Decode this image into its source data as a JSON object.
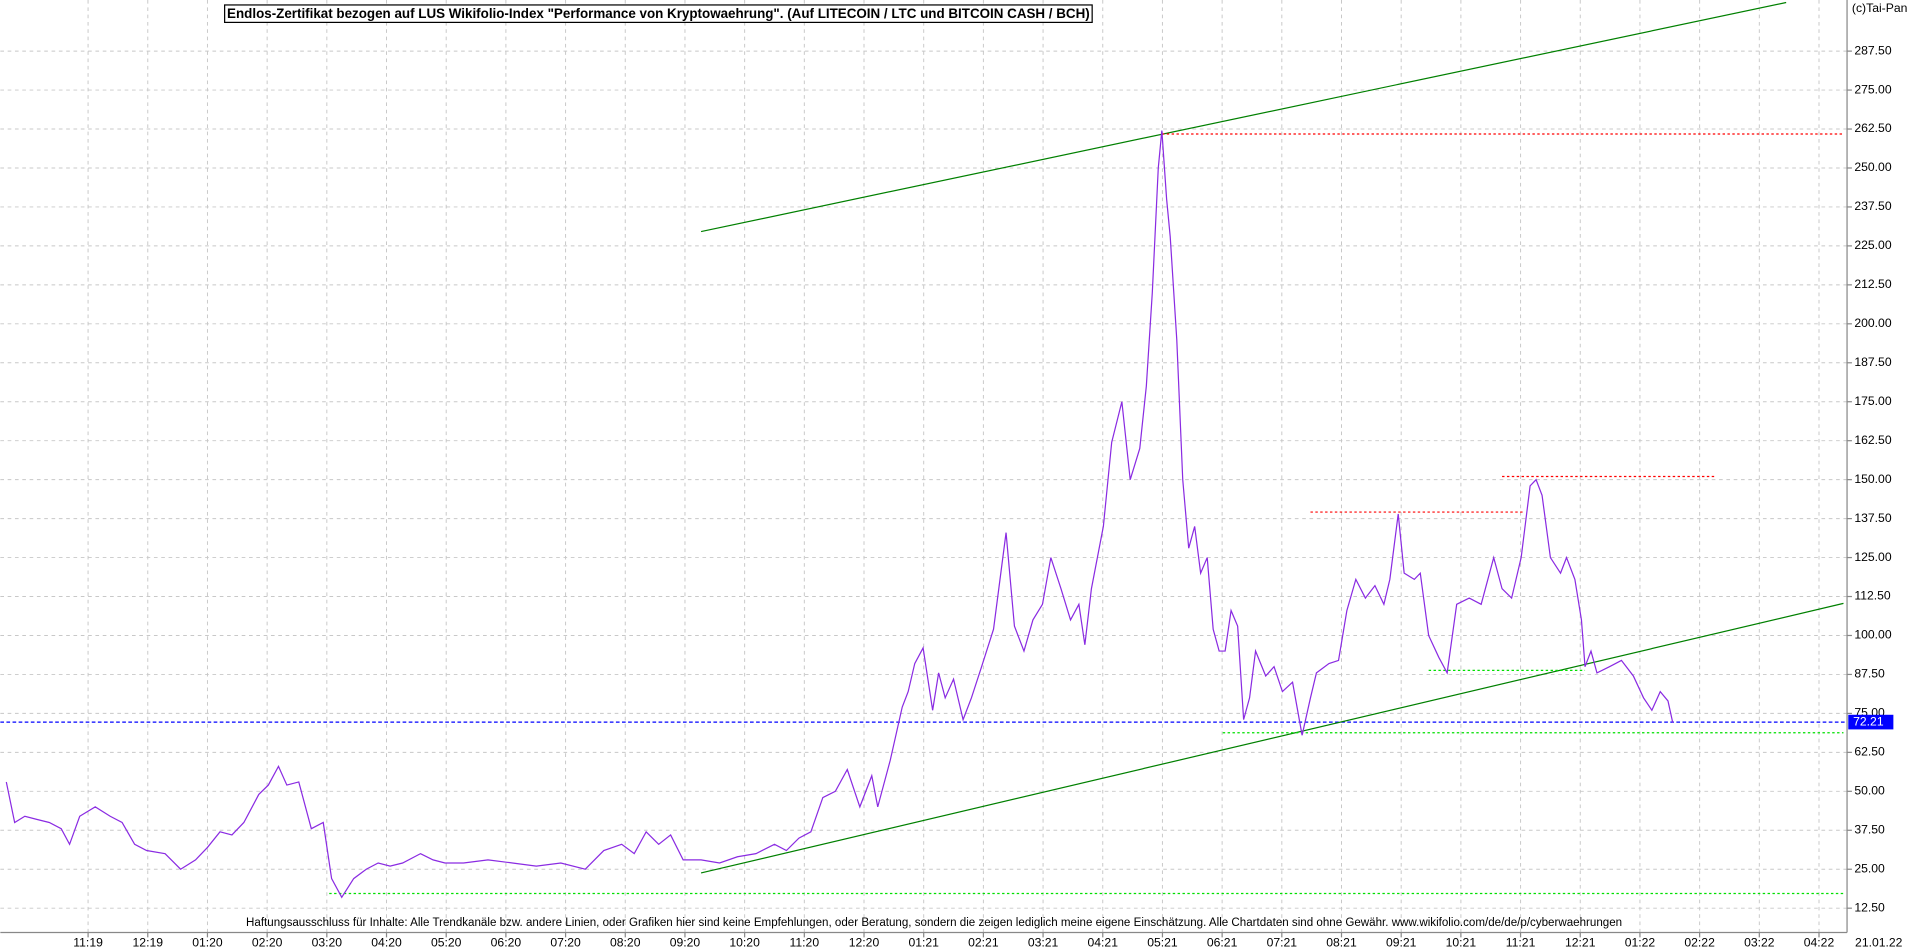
{
  "chart_data": {
    "type": "line",
    "title": "Endlos-Zertifikat bezogen auf LUS Wikifolio-Index \"Performance von Kryptowaehrung\". (Auf LITECOIN / LTC und BITCOIN CASH / BCH)",
    "copyright": "(c)Tai-Pan",
    "footer": "Haftungsausschluss für Inhalte: Alle Trendkanäle bzw. andere Linien, oder Grafiken hier sind keine Empfehlungen, oder Beratung, sondern die zeigen lediglich meine eigene Einschätzung. Alle Chartdaten sind ohne Gewähr.  www.wikifolio.com/de/de/p/cyberwaehrungen",
    "date_label": "21.01.22",
    "grid": true,
    "xlim": [
      -1.47,
      29.47
    ],
    "ylim": [
      4.7,
      303.9
    ],
    "xticks": [
      {
        "value": 0,
        "label": "11:19"
      },
      {
        "value": 1,
        "label": "12:19"
      },
      {
        "value": 2,
        "label": "01:20"
      },
      {
        "value": 3,
        "label": "02:20"
      },
      {
        "value": 4,
        "label": "03:20"
      },
      {
        "value": 5,
        "label": "04:20"
      },
      {
        "value": 6,
        "label": "05:20"
      },
      {
        "value": 7,
        "label": "06:20"
      },
      {
        "value": 8,
        "label": "07:20"
      },
      {
        "value": 9,
        "label": "08:20"
      },
      {
        "value": 10,
        "label": "09:20"
      },
      {
        "value": 11,
        "label": "10:20"
      },
      {
        "value": 12,
        "label": "11:20"
      },
      {
        "value": 13,
        "label": "12:20"
      },
      {
        "value": 14,
        "label": "01:21"
      },
      {
        "value": 15,
        "label": "02:21"
      },
      {
        "value": 16,
        "label": "03:21"
      },
      {
        "value": 17,
        "label": "04:21"
      },
      {
        "value": 18,
        "label": "05:21"
      },
      {
        "value": 19,
        "label": "06:21"
      },
      {
        "value": 20,
        "label": "07:21"
      },
      {
        "value": 21,
        "label": "08:21"
      },
      {
        "value": 22,
        "label": "09:21"
      },
      {
        "value": 23,
        "label": "10:21"
      },
      {
        "value": 24,
        "label": "11:21"
      },
      {
        "value": 25,
        "label": "12:21"
      },
      {
        "value": 26,
        "label": "01:22"
      },
      {
        "value": 27,
        "label": "02:22"
      },
      {
        "value": 28,
        "label": "03:22"
      },
      {
        "value": 29,
        "label": "04:22"
      }
    ],
    "yticks": [
      {
        "value": 12.5,
        "label": "12.50"
      },
      {
        "value": 25,
        "label": "25.00"
      },
      {
        "value": 37.5,
        "label": "37.50"
      },
      {
        "value": 50,
        "label": "50.00"
      },
      {
        "value": 62.5,
        "label": "62.50"
      },
      {
        "value": 75,
        "label": "75.00"
      },
      {
        "value": 87.5,
        "label": "87.50"
      },
      {
        "value": 100,
        "label": "100.00"
      },
      {
        "value": 112.5,
        "label": "112.50"
      },
      {
        "value": 125,
        "label": "125.00"
      },
      {
        "value": 137.5,
        "label": "137.50"
      },
      {
        "value": 150,
        "label": "150.00"
      },
      {
        "value": 162.5,
        "label": "162.50"
      },
      {
        "value": 175,
        "label": "175.00"
      },
      {
        "value": 187.5,
        "label": "187.50"
      },
      {
        "value": 200,
        "label": "200.00"
      },
      {
        "value": 212.5,
        "label": "212.50"
      },
      {
        "value": 225,
        "label": "225.00"
      },
      {
        "value": 237.5,
        "label": "237.50"
      },
      {
        "value": 250,
        "label": "250.00"
      },
      {
        "value": 262.5,
        "label": "262.50"
      },
      {
        "value": 275,
        "label": "275.00"
      },
      {
        "value": 287.5,
        "label": "287.50"
      }
    ],
    "x": [
      -1.37,
      -1.23,
      -1.06,
      -0.86,
      -0.65,
      -0.45,
      -0.31,
      -0.14,
      0.12,
      0.37,
      0.57,
      0.78,
      0.98,
      1.29,
      1.55,
      1.8,
      2.0,
      2.21,
      2.41,
      2.61,
      2.86,
      3.02,
      3.19,
      3.33,
      3.53,
      3.74,
      3.94,
      4.08,
      4.25,
      4.45,
      4.66,
      4.86,
      5.06,
      5.27,
      5.57,
      5.78,
      5.98,
      6.29,
      6.7,
      7.11,
      7.51,
      7.92,
      8.33,
      8.64,
      8.94,
      9.15,
      9.35,
      9.56,
      9.76,
      9.97,
      10.27,
      10.58,
      10.88,
      11.19,
      11.5,
      11.7,
      11.91,
      12.11,
      12.31,
      12.52,
      12.72,
      12.93,
      13.13,
      13.23,
      13.44,
      13.64,
      13.74,
      13.85,
      13.99,
      14.15,
      14.25,
      14.36,
      14.5,
      14.66,
      14.8,
      14.97,
      15.17,
      15.38,
      15.52,
      15.68,
      15.83,
      15.99,
      16.13,
      16.3,
      16.46,
      16.6,
      16.7,
      16.81,
      17.01,
      17.15,
      17.32,
      17.46,
      17.62,
      17.73,
      17.83,
      17.93,
      17.99,
      18.07,
      18.13,
      18.24,
      18.34,
      18.44,
      18.54,
      18.64,
      18.75,
      18.85,
      18.95,
      19.05,
      19.15,
      19.26,
      19.36,
      19.46,
      19.56,
      19.73,
      19.87,
      20.01,
      20.18,
      20.34,
      20.48,
      20.58,
      20.79,
      20.95,
      21.09,
      21.24,
      21.4,
      21.56,
      21.71,
      21.81,
      21.95,
      22.05,
      22.22,
      22.32,
      22.46,
      22.63,
      22.77,
      22.93,
      23.14,
      23.34,
      23.55,
      23.69,
      23.85,
      24.01,
      24.16,
      24.26,
      24.36,
      24.5,
      24.67,
      24.77,
      24.91,
      25.02,
      25.08,
      25.18,
      25.28,
      25.49,
      25.69,
      25.89,
      26.06,
      26.2,
      26.34,
      26.47,
      26.55
    ],
    "series": [
      {
        "color": "#8a2be2",
        "values": [
          53,
          40,
          42,
          41,
          40,
          38,
          33,
          42,
          45,
          42,
          40,
          33,
          31,
          30,
          25,
          28,
          32,
          37,
          36,
          40,
          49,
          52,
          58,
          52,
          53,
          38,
          40,
          22,
          16,
          22,
          25,
          27,
          26,
          27,
          30,
          28,
          27,
          27,
          28,
          27,
          26,
          27,
          25,
          31,
          33,
          30,
          37,
          33,
          36,
          28,
          28,
          27,
          29,
          30,
          33,
          31,
          35,
          37,
          48,
          50,
          57,
          45,
          55,
          45,
          60,
          77,
          82,
          91,
          96,
          76,
          88,
          80,
          86,
          73,
          80,
          90,
          102,
          133,
          103,
          95,
          105,
          110,
          125,
          115,
          105,
          110,
          97,
          115,
          135,
          162,
          175,
          150,
          160,
          180,
          210,
          250,
          262,
          240,
          228,
          195,
          150,
          128,
          135,
          120,
          125,
          102,
          95,
          95,
          108,
          103,
          73,
          80,
          95,
          87,
          90,
          82,
          85,
          68,
          80,
          88,
          91,
          92,
          108,
          118,
          112,
          116,
          110,
          118,
          139,
          120,
          118,
          120,
          100,
          93,
          88,
          110,
          112,
          110,
          125,
          115,
          112,
          125,
          148,
          150,
          145,
          125,
          120,
          125,
          118,
          105,
          90,
          95,
          88,
          90,
          92,
          87,
          80,
          76,
          82,
          79,
          72
        ]
      }
    ],
    "lines": [
      {
        "x": [
          10.27,
          28.45
        ],
        "y": [
          229.6,
          303.1
        ],
        "color": "#008000",
        "dashed": false
      },
      {
        "x": [
          10.27,
          29.41
        ],
        "y": [
          23.8,
          110.3
        ],
        "color": "#008000",
        "dashed": false
      },
      {
        "x": [
          17.99,
          29.41
        ],
        "y": [
          260.9,
          260.9
        ],
        "color": "#ff0000",
        "dashed": true
      },
      {
        "x": [
          20.48,
          24.06
        ],
        "y": [
          139.6,
          139.6
        ],
        "color": "#ff0000",
        "dashed": true
      },
      {
        "x": [
          23.69,
          27.28
        ],
        "y": [
          151,
          151
        ],
        "color": "#ff0000",
        "dashed": true
      },
      {
        "x": [
          22.46,
          25.08
        ],
        "y": [
          88.8,
          88.8
        ],
        "color": "#00e000",
        "dashed": true
      },
      {
        "x": [
          19.01,
          29.41
        ],
        "y": [
          68.8,
          68.8
        ],
        "color": "#00e000",
        "dashed": true
      },
      {
        "x": [
          4.04,
          29.41
        ],
        "y": [
          17.2,
          17.2
        ],
        "color": "#00e000",
        "dashed": true
      }
    ],
    "last_value": 72.21,
    "last_value_color": "#0000ff"
  }
}
